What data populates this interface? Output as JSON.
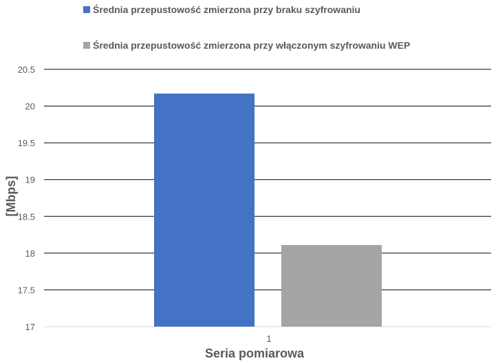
{
  "chart_data": {
    "type": "bar",
    "categories": [
      "1"
    ],
    "series": [
      {
        "name": "Średnia przepustowość zmierzona przy braku szyfrowaniu",
        "values": [
          20.17
        ],
        "color": "#4472C4"
      },
      {
        "name": "Średnia przepustowość zmierzona przy włączonym szyfrowaniu WEP",
        "values": [
          18.11
        ],
        "color": "#A5A5A5"
      }
    ],
    "xlabel": "Seria pomiarowa",
    "ylabel": "[Mbps]",
    "ylim": [
      17,
      20.5
    ],
    "yticks": [
      "17",
      "17.5",
      "18",
      "18.5",
      "19",
      "19.5",
      "20",
      "20.5"
    ],
    "grid": true,
    "legend_position": "top"
  }
}
